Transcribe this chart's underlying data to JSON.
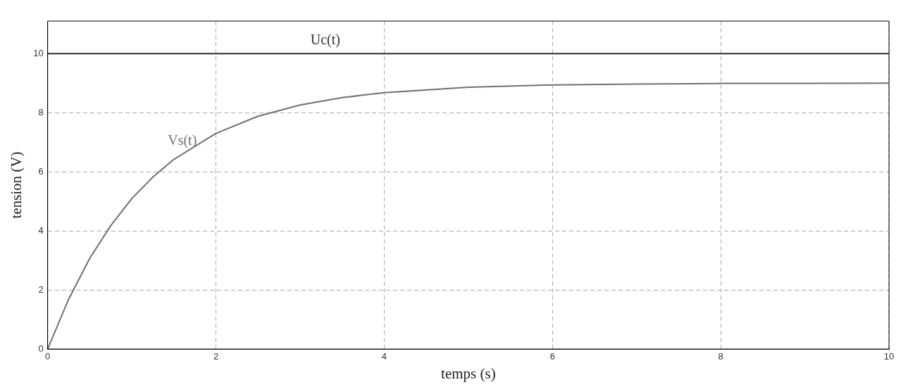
{
  "chart_data": {
    "type": "line",
    "xlabel": "temps (s)",
    "ylabel": "tension (V)",
    "xlim": [
      0,
      10
    ],
    "ylim": [
      0,
      11.1
    ],
    "xticks": [
      0,
      2,
      4,
      6,
      8,
      10
    ],
    "yticks": [
      0,
      2,
      4,
      6,
      8,
      10
    ],
    "grid": true,
    "legend": false,
    "marker": "none",
    "line_style": "solid",
    "series": [
      {
        "name": "Uc(t)",
        "color": "#303030",
        "x": [
          0,
          10
        ],
        "values": [
          10,
          10
        ]
      },
      {
        "name": "Vs(t)",
        "color": "#707070",
        "x": [
          0,
          0.25,
          0.5,
          0.75,
          1,
          1.25,
          1.5,
          2,
          2.5,
          3,
          3.5,
          4,
          5,
          6,
          7,
          8,
          9,
          10
        ],
        "values": [
          0,
          1.69,
          3.07,
          4.18,
          5.09,
          5.82,
          6.42,
          7.3,
          7.88,
          8.26,
          8.51,
          8.68,
          8.86,
          8.94,
          8.97,
          8.99,
          8.99,
          9.0
        ]
      }
    ]
  }
}
